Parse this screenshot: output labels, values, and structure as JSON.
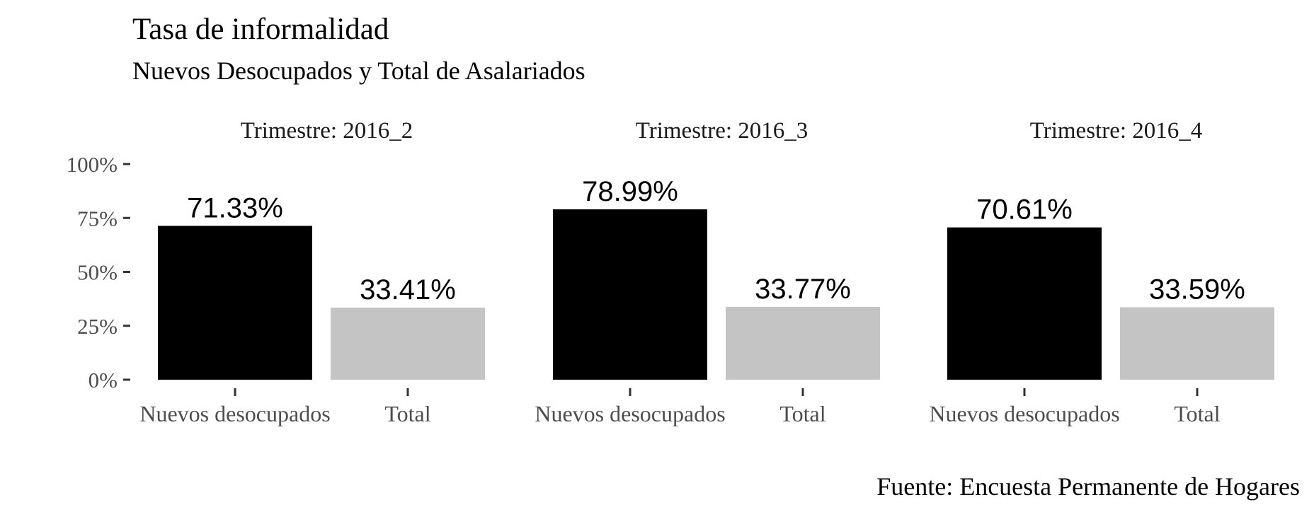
{
  "chart_data": {
    "type": "bar",
    "title": "Tasa de informalidad",
    "subtitle": "Nuevos Desocupados y Total de Asalariados",
    "caption": "Fuente: Encuesta Permanente de Hogares",
    "categories": [
      "Nuevos desocupados",
      "Total"
    ],
    "ylim": [
      0,
      100
    ],
    "y_ticks": [
      {
        "value": 0,
        "label": "0%"
      },
      {
        "value": 25,
        "label": "25%"
      },
      {
        "value": 50,
        "label": "50%"
      },
      {
        "value": 75,
        "label": "75%"
      },
      {
        "value": 100,
        "label": "100%"
      }
    ],
    "grid": false,
    "colors": {
      "Nuevos desocupados": "#000000",
      "Total": "#c4c4c4"
    },
    "panels": [
      {
        "label": "Trimestre: 2016_2",
        "values": [
          71.33,
          33.41
        ],
        "value_labels": [
          "71.33%",
          "33.41%"
        ]
      },
      {
        "label": "Trimestre: 2016_3",
        "values": [
          78.99,
          33.77
        ],
        "value_labels": [
          "78.99%",
          "33.77%"
        ]
      },
      {
        "label": "Trimestre: 2016_4",
        "values": [
          70.61,
          33.59
        ],
        "value_labels": [
          "70.61%",
          "33.59%"
        ]
      }
    ]
  }
}
